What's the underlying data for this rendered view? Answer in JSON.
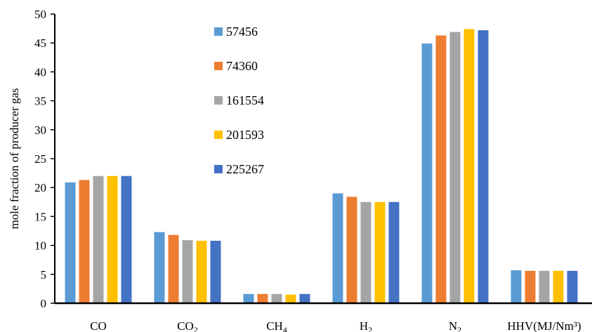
{
  "chart_data": {
    "type": "bar",
    "title": "",
    "xlabel": "",
    "ylabel": "mole fraction of producer gas",
    "ylim": [
      0,
      50
    ],
    "ytick_step": 5,
    "grid": false,
    "legend_position": "top-center",
    "categories": [
      {
        "base": "CO",
        "sub": "",
        "tail": ""
      },
      {
        "base": "CO",
        "sub": "2",
        "tail": ""
      },
      {
        "base": "CH",
        "sub": "4",
        "tail": ""
      },
      {
        "base": "H",
        "sub": "2",
        "tail": ""
      },
      {
        "base": "N",
        "sub": "2",
        "tail": ""
      },
      {
        "base": "HHV(MJ/Nm³)",
        "sub": "",
        "tail": ""
      }
    ],
    "series": [
      {
        "name": "57456",
        "color": "#5B9BD5",
        "values": [
          20.9,
          12.3,
          1.6,
          19.0,
          44.9,
          5.7
        ]
      },
      {
        "name": "74360",
        "color": "#ED7D31",
        "values": [
          21.3,
          11.8,
          1.6,
          18.4,
          46.3,
          5.6
        ]
      },
      {
        "name": "161554",
        "color": "#A5A5A5",
        "values": [
          22.0,
          10.9,
          1.6,
          17.5,
          46.9,
          5.6
        ]
      },
      {
        "name": "201593",
        "color": "#FFC000",
        "values": [
          22.0,
          10.8,
          1.5,
          17.5,
          47.4,
          5.6
        ]
      },
      {
        "name": "225267",
        "color": "#4472C4",
        "values": [
          22.0,
          10.8,
          1.6,
          17.5,
          47.2,
          5.6
        ]
      }
    ]
  }
}
